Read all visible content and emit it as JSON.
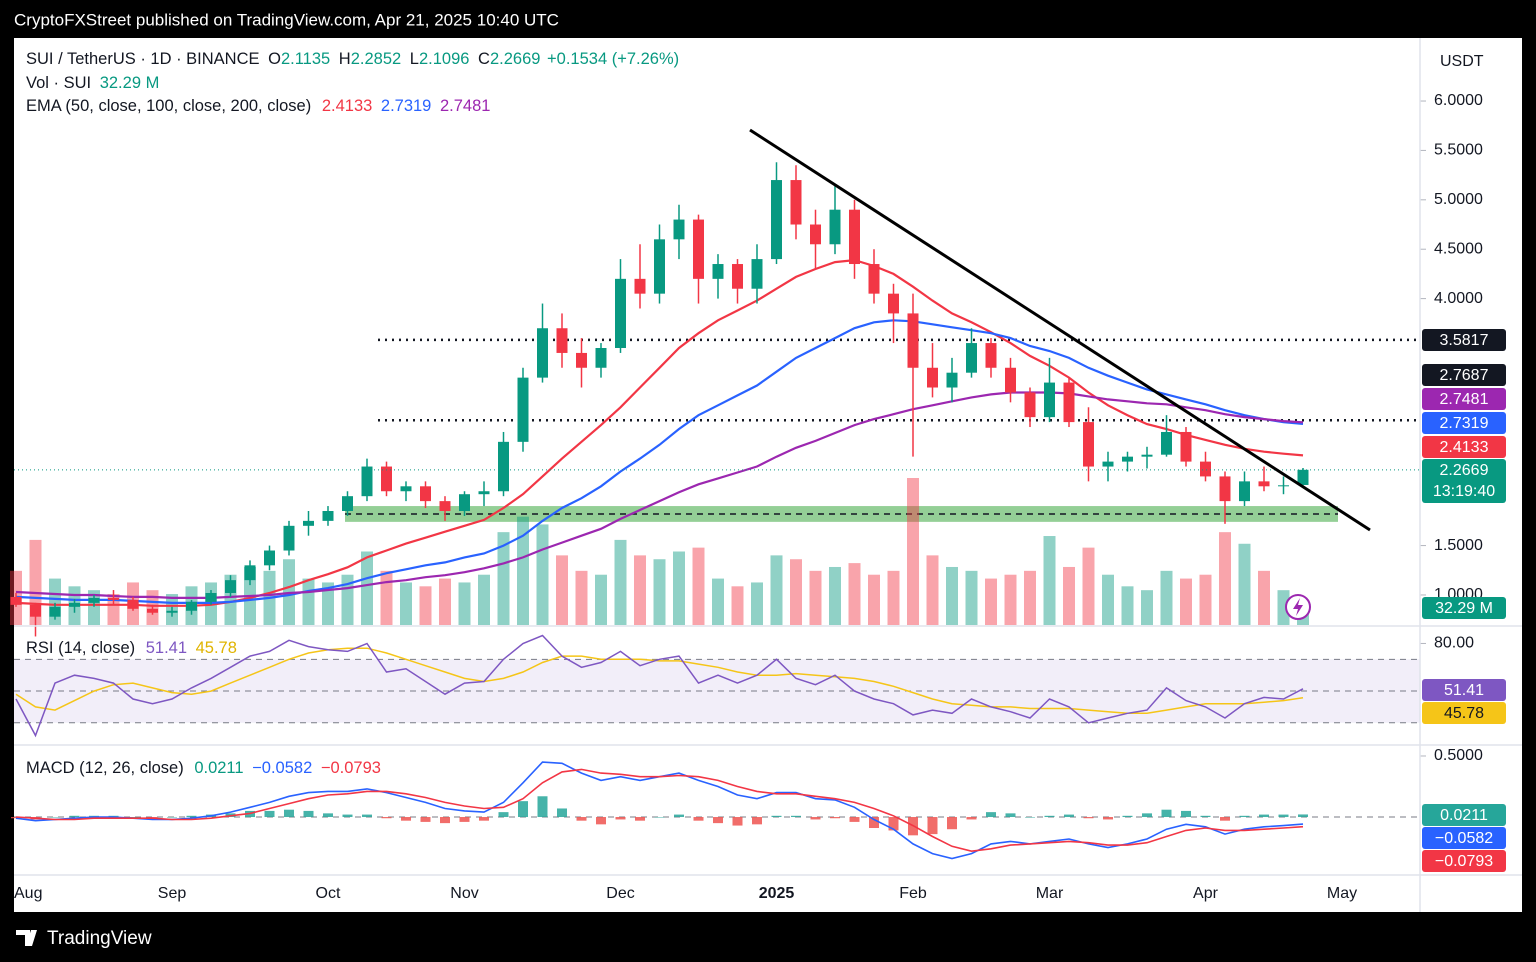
{
  "header": {
    "published": "CryptoFXStreet published on TradingView.com, Apr 21, 2025 10:40 UTC"
  },
  "footer": {
    "brand": "TradingView"
  },
  "chart_data": [
    {
      "type": "candlestick",
      "title": "SUI / TetherUS · 1D · BINANCE",
      "currency": "USDT",
      "categories": [
        "Aug",
        null,
        null,
        null,
        null,
        null,
        null,
        null,
        "Sep",
        null,
        null,
        null,
        null,
        null,
        null,
        null,
        "Oct",
        null,
        null,
        null,
        null,
        null,
        null,
        "Nov",
        null,
        null,
        null,
        null,
        null,
        null,
        null,
        "Dec",
        null,
        null,
        null,
        null,
        null,
        null,
        null,
        "2025",
        null,
        null,
        null,
        null,
        null,
        null,
        "Feb",
        null,
        null,
        null,
        null,
        null,
        null,
        "Mar",
        null,
        null,
        null,
        null,
        null,
        null,
        null,
        "Apr",
        null,
        null,
        null,
        null,
        null,
        null,
        "May",
        null,
        null,
        null
      ],
      "ylim": [
        0.696,
        6.638
      ],
      "yticks": [
        {
          "value": 6,
          "label": "6.0000"
        },
        {
          "value": 5.5,
          "label": "5.5000"
        },
        {
          "value": 5,
          "label": "5.0000"
        },
        {
          "value": 4.5,
          "label": "4.5000"
        },
        {
          "value": 4,
          "label": "4.0000"
        },
        {
          "value": 1.5,
          "label": "1.5000"
        },
        {
          "value": 1,
          "label": "1.0000"
        }
      ],
      "ohlc_labels": [
        "O",
        "H",
        "L",
        "C"
      ],
      "change_label": "+0.1534 (+7.26%)",
      "countdown": "13:19:40",
      "candles": {
        "up_color": "#089981",
        "down_color": "#f23645",
        "open": [
          0.98,
          0.9,
          0.78,
          0.88,
          0.92,
          0.97,
          0.95,
          0.86,
          0.82,
          0.84,
          0.93,
          1.02,
          1.15,
          1.3,
          1.45,
          1.7,
          1.75,
          1.85,
          2.0,
          2.3,
          2.05,
          2.1,
          1.95,
          1.85,
          2.02,
          2.05,
          2.55,
          3.2,
          3.7,
          3.45,
          3.3,
          3.5,
          4.2,
          4.05,
          4.6,
          4.8,
          4.2,
          4.35,
          4.1,
          4.4,
          5.2,
          4.75,
          4.55,
          4.9,
          4.35,
          4.05,
          3.85,
          3.3,
          3.1,
          3.25,
          3.55,
          3.3,
          3.05,
          2.8,
          3.15,
          2.75,
          2.3,
          2.35,
          2.4,
          2.42,
          2.65,
          2.35,
          2.2,
          1.95,
          2.15,
          2.1,
          2.1135,
          null,
          null,
          null,
          null,
          null
        ],
        "high": [
          1.02,
          0.92,
          0.92,
          0.96,
          1.0,
          1.05,
          0.98,
          0.9,
          0.88,
          0.95,
          1.05,
          1.2,
          1.35,
          1.5,
          1.75,
          1.85,
          1.9,
          2.05,
          2.38,
          2.35,
          2.15,
          2.15,
          2.0,
          2.05,
          2.15,
          2.65,
          3.3,
          3.95,
          3.85,
          3.6,
          3.55,
          4.4,
          4.55,
          4.75,
          4.95,
          4.85,
          4.45,
          4.4,
          4.55,
          5.38,
          5.35,
          4.9,
          5.15,
          5.0,
          4.5,
          4.15,
          4.05,
          3.55,
          3.4,
          3.7,
          3.6,
          3.4,
          3.1,
          3.4,
          3.2,
          2.9,
          2.45,
          2.45,
          2.5,
          2.82,
          2.7,
          2.45,
          2.25,
          2.25,
          2.3,
          2.2,
          2.2852,
          null,
          null,
          null,
          null,
          null
        ],
        "low": [
          0.88,
          0.58,
          0.75,
          0.82,
          0.88,
          0.9,
          0.84,
          0.8,
          0.78,
          0.8,
          0.9,
          0.98,
          1.1,
          1.25,
          1.4,
          1.6,
          1.7,
          1.8,
          1.95,
          2.0,
          1.95,
          1.88,
          1.75,
          1.8,
          1.9,
          2.0,
          2.45,
          3.15,
          3.3,
          3.1,
          3.2,
          3.45,
          3.9,
          3.95,
          4.4,
          3.95,
          4.0,
          3.95,
          3.95,
          4.35,
          4.6,
          4.3,
          4.45,
          4.2,
          3.95,
          3.55,
          2.4,
          3.0,
          2.95,
          3.2,
          3.2,
          2.95,
          2.7,
          2.75,
          2.7,
          2.15,
          2.15,
          2.25,
          2.28,
          2.4,
          2.3,
          2.15,
          1.72,
          1.9,
          2.05,
          2.02,
          2.1096,
          null,
          null,
          null,
          null,
          null
        ],
        "close": [
          0.9,
          0.78,
          0.88,
          0.92,
          0.97,
          0.95,
          0.86,
          0.82,
          0.84,
          0.93,
          1.02,
          1.15,
          1.3,
          1.45,
          1.7,
          1.75,
          1.85,
          2.0,
          2.3,
          2.05,
          2.1,
          1.95,
          1.85,
          2.02,
          2.05,
          2.55,
          3.2,
          3.7,
          3.45,
          3.3,
          3.5,
          4.2,
          4.05,
          4.6,
          4.8,
          4.2,
          4.35,
          4.1,
          4.4,
          5.2,
          4.75,
          4.55,
          4.9,
          4.35,
          4.05,
          3.85,
          3.3,
          3.1,
          3.25,
          3.55,
          3.3,
          3.05,
          2.8,
          3.15,
          2.75,
          2.3,
          2.35,
          2.4,
          2.42,
          2.65,
          2.35,
          2.2,
          1.95,
          2.15,
          2.1,
          2.11,
          2.2669,
          null,
          null,
          null,
          null,
          null
        ]
      },
      "volume": {
        "name": "Vol · SUI",
        "value_label": "32.29 M",
        "values": [
          70,
          110,
          60,
          50,
          45,
          40,
          55,
          45,
          40,
          50,
          55,
          65,
          75,
          70,
          85,
          60,
          55,
          65,
          95,
          70,
          55,
          50,
          60,
          55,
          65,
          120,
          140,
          130,
          90,
          70,
          65,
          110,
          90,
          85,
          95,
          100,
          60,
          50,
          55,
          90,
          85,
          70,
          75,
          80,
          65,
          70,
          190,
          90,
          75,
          70,
          60,
          65,
          70,
          115,
          75,
          100,
          65,
          50,
          45,
          70,
          60,
          65,
          120,
          105,
          70,
          45,
          32.29,
          null,
          null,
          null,
          null,
          null
        ]
      },
      "ema": {
        "name": "EMA (50, close, 100, close, 200, close)",
        "series": [
          {
            "color": "#f23645",
            "values": [
              0.92,
              0.91,
              0.9,
              0.9,
              0.9,
              0.9,
              0.9,
              0.89,
              0.89,
              0.89,
              0.9,
              0.93,
              0.97,
              1.02,
              1.08,
              1.15,
              1.21,
              1.28,
              1.38,
              1.45,
              1.52,
              1.58,
              1.64,
              1.7,
              1.76,
              1.88,
              2.02,
              2.2,
              2.38,
              2.55,
              2.72,
              2.9,
              3.1,
              3.3,
              3.5,
              3.65,
              3.78,
              3.88,
              3.98,
              4.1,
              4.22,
              4.3,
              4.37,
              4.39,
              4.33,
              4.25,
              4.12,
              3.98,
              3.85,
              3.76,
              3.66,
              3.55,
              3.42,
              3.32,
              3.2,
              3.05,
              2.92,
              2.82,
              2.73,
              2.68,
              2.62,
              2.57,
              2.52,
              2.48,
              2.45,
              2.43,
              2.4133,
              null,
              null,
              null,
              null,
              null
            ]
          },
          {
            "color": "#2962ff",
            "values": [
              0.98,
              0.97,
              0.96,
              0.95,
              0.95,
              0.95,
              0.94,
              0.93,
              0.92,
              0.92,
              0.92,
              0.93,
              0.95,
              0.97,
              1.0,
              1.04,
              1.07,
              1.11,
              1.17,
              1.22,
              1.26,
              1.3,
              1.33,
              1.38,
              1.42,
              1.5,
              1.6,
              1.75,
              1.88,
              1.98,
              2.1,
              2.25,
              2.38,
              2.52,
              2.68,
              2.82,
              2.92,
              3.02,
              3.12,
              3.26,
              3.4,
              3.5,
              3.6,
              3.7,
              3.76,
              3.78,
              3.77,
              3.74,
              3.71,
              3.68,
              3.65,
              3.6,
              3.52,
              3.47,
              3.4,
              3.3,
              3.22,
              3.15,
              3.08,
              3.03,
              2.98,
              2.93,
              2.87,
              2.82,
              2.78,
              2.75,
              2.7319,
              null,
              null,
              null,
              null,
              null
            ]
          },
          {
            "color": "#9c27b0",
            "values": [
              1.03,
              1.02,
              1.01,
              1.0,
              1.0,
              0.99,
              0.98,
              0.98,
              0.97,
              0.97,
              0.97,
              0.98,
              0.99,
              1.0,
              1.02,
              1.03,
              1.05,
              1.07,
              1.1,
              1.13,
              1.15,
              1.18,
              1.2,
              1.23,
              1.27,
              1.32,
              1.38,
              1.46,
              1.53,
              1.6,
              1.67,
              1.77,
              1.86,
              1.95,
              2.04,
              2.12,
              2.18,
              2.24,
              2.3,
              2.4,
              2.49,
              2.56,
              2.64,
              2.72,
              2.78,
              2.83,
              2.88,
              2.92,
              2.96,
              3.0,
              3.03,
              3.05,
              3.05,
              3.05,
              3.04,
              3.01,
              2.98,
              2.96,
              2.94,
              2.93,
              2.9,
              2.87,
              2.83,
              2.8,
              2.78,
              2.76,
              2.7481,
              null,
              null,
              null,
              null,
              null
            ]
          }
        ]
      },
      "levels": [
        3.5817,
        2.7687
      ],
      "support_zone": [
        1.74,
        1.9
      ],
      "support_line": 1.82
    },
    {
      "type": "rsi",
      "name": "RSI (14, close)",
      "ylim": [
        16,
        91
      ],
      "yticks": [
        {
          "value": 80,
          "label": "80.00"
        }
      ],
      "bands": [
        70,
        50,
        30
      ],
      "series": [
        {
          "color": "#7e57c2",
          "values": [
            45,
            22,
            55,
            60,
            58,
            55,
            45,
            42,
            45,
            52,
            58,
            65,
            72,
            75,
            82,
            78,
            76,
            75,
            80,
            62,
            64,
            56,
            48,
            55,
            56,
            70,
            80,
            85,
            72,
            65,
            68,
            75,
            66,
            70,
            72,
            55,
            60,
            55,
            60,
            70,
            58,
            54,
            60,
            50,
            45,
            42,
            35,
            38,
            36,
            45,
            40,
            37,
            33,
            45,
            40,
            30,
            33,
            36,
            38,
            52,
            44,
            40,
            33,
            42,
            46,
            45,
            51.41,
            null,
            null,
            null,
            null,
            null
          ]
        },
        {
          "color": "#f5c518",
          "values": [
            48,
            40,
            38,
            44,
            50,
            54,
            55,
            52,
            49,
            48,
            50,
            55,
            60,
            65,
            70,
            74,
            76,
            77,
            77,
            74,
            70,
            66,
            62,
            58,
            56,
            58,
            62,
            68,
            72,
            72,
            70,
            70,
            70,
            69,
            69,
            67,
            65,
            62,
            60,
            60,
            61,
            60,
            59,
            58,
            56,
            53,
            49,
            45,
            42,
            41,
            40,
            40,
            39,
            39,
            39,
            38,
            37,
            36,
            36,
            38,
            40,
            42,
            42,
            42,
            43,
            44,
            45.78,
            null,
            null,
            null,
            null,
            null
          ]
        }
      ]
    },
    {
      "type": "macd",
      "name": "MACD (12, 26, close)",
      "ylim": [
        -0.475,
        0.59
      ],
      "yticks": [
        {
          "value": 0.5,
          "label": "0.5000"
        }
      ],
      "histogram": {
        "up_color": "#26a69a",
        "down_color": "#ef5350",
        "values": [
          -0.01,
          -0.02,
          0.0,
          0.01,
          0.01,
          0.01,
          0.0,
          -0.01,
          0.0,
          0.01,
          0.02,
          0.03,
          0.05,
          0.05,
          0.06,
          0.05,
          0.03,
          0.02,
          0.02,
          -0.01,
          -0.03,
          -0.04,
          -0.05,
          -0.04,
          -0.03,
          0.04,
          0.13,
          0.17,
          0.07,
          -0.03,
          -0.06,
          -0.02,
          -0.03,
          0.0,
          0.02,
          -0.03,
          -0.05,
          -0.07,
          -0.06,
          0.01,
          0.01,
          -0.02,
          -0.01,
          -0.04,
          -0.09,
          -0.11,
          -0.15,
          -0.14,
          -0.1,
          -0.02,
          0.04,
          0.03,
          0.0,
          0.01,
          0.02,
          -0.01,
          -0.02,
          0.01,
          0.03,
          0.06,
          0.05,
          0.01,
          -0.03,
          0.01,
          0.02,
          0.02,
          0.0211,
          null,
          null,
          null,
          null,
          null
        ]
      },
      "series": [
        {
          "color": "#2962ff",
          "value_label": "−0.0582",
          "values": [
            -0.01,
            -0.03,
            -0.02,
            -0.01,
            0.0,
            0.0,
            -0.01,
            -0.02,
            -0.02,
            -0.01,
            0.01,
            0.04,
            0.08,
            0.12,
            0.17,
            0.2,
            0.21,
            0.21,
            0.23,
            0.2,
            0.16,
            0.12,
            0.07,
            0.05,
            0.04,
            0.12,
            0.28,
            0.45,
            0.44,
            0.36,
            0.3,
            0.33,
            0.3,
            0.33,
            0.36,
            0.3,
            0.25,
            0.18,
            0.15,
            0.2,
            0.2,
            0.15,
            0.14,
            0.08,
            -0.02,
            -0.1,
            -0.22,
            -0.3,
            -0.34,
            -0.3,
            -0.22,
            -0.2,
            -0.22,
            -0.2,
            -0.18,
            -0.22,
            -0.25,
            -0.22,
            -0.18,
            -0.1,
            -0.06,
            -0.08,
            -0.14,
            -0.1,
            -0.08,
            -0.07,
            -0.0582,
            null,
            null,
            null,
            null,
            null
          ]
        },
        {
          "color": "#f23645",
          "value_label": "−0.0793",
          "values": [
            0.0,
            -0.01,
            -0.02,
            -0.02,
            -0.01,
            -0.01,
            -0.01,
            -0.01,
            -0.02,
            -0.02,
            -0.01,
            0.01,
            0.03,
            0.07,
            0.11,
            0.15,
            0.18,
            0.19,
            0.21,
            0.21,
            0.19,
            0.16,
            0.12,
            0.09,
            0.07,
            0.08,
            0.15,
            0.28,
            0.37,
            0.39,
            0.36,
            0.35,
            0.33,
            0.33,
            0.34,
            0.33,
            0.3,
            0.25,
            0.21,
            0.19,
            0.19,
            0.17,
            0.15,
            0.12,
            0.07,
            0.01,
            -0.07,
            -0.16,
            -0.24,
            -0.28,
            -0.26,
            -0.23,
            -0.22,
            -0.21,
            -0.2,
            -0.21,
            -0.23,
            -0.23,
            -0.21,
            -0.16,
            -0.11,
            -0.09,
            -0.11,
            -0.11,
            -0.1,
            -0.09,
            -0.0793,
            null,
            null,
            null,
            null,
            null
          ]
        }
      ]
    }
  ]
}
